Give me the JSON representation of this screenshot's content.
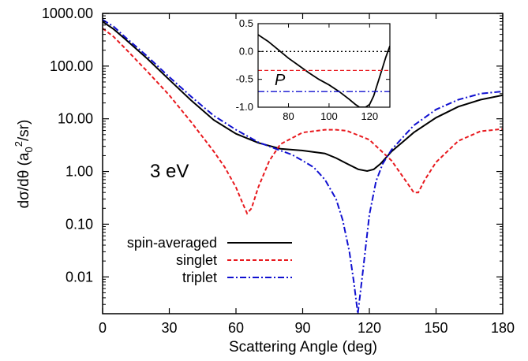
{
  "chart_data": [
    {
      "type": "line",
      "xlabel": "Scattering Angle (deg)",
      "ylabel": "dσ/dθ (a",
      "ylabel_sub": "0",
      "ylabel_sup": "2",
      "ylabel_tail": "/sr)",
      "xlim": [
        0,
        180
      ],
      "ylim": [
        0.002,
        1000
      ],
      "yscale": "log",
      "grid": false,
      "legend_position": "bottom-left",
      "xticks": [
        0,
        30,
        60,
        90,
        120,
        150,
        180
      ],
      "xtick_labels": [
        "0",
        "30",
        "60",
        "90",
        "120",
        "150",
        "180"
      ],
      "yticks": [
        0.01,
        0.1,
        1,
        10,
        100,
        1000
      ],
      "ytick_labels": [
        "0.01",
        "0.10",
        "1.00",
        "10.00",
        "100.00",
        "1000.00"
      ],
      "annotation": "3 eV",
      "series": [
        {
          "name": "spin-averaged",
          "color": "#000000",
          "style": "solid",
          "points": [
            [
              0,
              700
            ],
            [
              5,
              500
            ],
            [
              10,
              330
            ],
            [
              20,
              140
            ],
            [
              30,
              55
            ],
            [
              40,
              22
            ],
            [
              50,
              9.5
            ],
            [
              60,
              5.2
            ],
            [
              70,
              3.5
            ],
            [
              80,
              2.7
            ],
            [
              90,
              2.5
            ],
            [
              100,
              2.2
            ],
            [
              105,
              1.8
            ],
            [
              110,
              1.4
            ],
            [
              115,
              1.1
            ],
            [
              119,
              1.02
            ],
            [
              122,
              1.1
            ],
            [
              125,
              1.4
            ],
            [
              130,
              2.4
            ],
            [
              140,
              5.5
            ],
            [
              150,
              10.5
            ],
            [
              160,
              17
            ],
            [
              170,
              23
            ],
            [
              180,
              28
            ]
          ]
        },
        {
          "name": "singlet",
          "color": "#e8191e",
          "style": "dashed",
          "points": [
            [
              0,
              520
            ],
            [
              5,
              360
            ],
            [
              10,
              220
            ],
            [
              20,
              80
            ],
            [
              30,
              28
            ],
            [
              40,
              8.5
            ],
            [
              50,
              2.4
            ],
            [
              55,
              1.2
            ],
            [
              60,
              0.5
            ],
            [
              63,
              0.25
            ],
            [
              65,
              0.16
            ],
            [
              67,
              0.2
            ],
            [
              70,
              0.5
            ],
            [
              75,
              1.6
            ],
            [
              80,
              3.3
            ],
            [
              90,
              5.5
            ],
            [
              100,
              6.2
            ],
            [
              105,
              6.2
            ],
            [
              110,
              5.9
            ],
            [
              120,
              4.0
            ],
            [
              130,
              1.6
            ],
            [
              135,
              0.8
            ],
            [
              140,
              0.4
            ],
            [
              142,
              0.4
            ],
            [
              145,
              0.7
            ],
            [
              150,
              1.5
            ],
            [
              160,
              3.8
            ],
            [
              170,
              5.8
            ],
            [
              180,
              6.4
            ]
          ]
        },
        {
          "name": "triplet",
          "color": "#1010d0",
          "style": "dash-dot",
          "points": [
            [
              0,
              760
            ],
            [
              5,
              560
            ],
            [
              10,
              360
            ],
            [
              20,
              155
            ],
            [
              30,
              62
            ],
            [
              40,
              26
            ],
            [
              50,
              11.5
            ],
            [
              60,
              6.2
            ],
            [
              70,
              3.6
            ],
            [
              80,
              2.5
            ],
            [
              85,
              2.1
            ],
            [
              90,
              1.6
            ],
            [
              95,
              1.2
            ],
            [
              100,
              0.7
            ],
            [
              105,
              0.3
            ],
            [
              108,
              0.12
            ],
            [
              111,
              0.03
            ],
            [
              113,
              0.008
            ],
            [
              114.8,
              0.002
            ],
            [
              117,
              0.012
            ],
            [
              120,
              0.15
            ],
            [
              123,
              0.65
            ],
            [
              126,
              1.4
            ],
            [
              130,
              2.6
            ],
            [
              140,
              7.5
            ],
            [
              150,
              15
            ],
            [
              160,
              23
            ],
            [
              170,
              30
            ],
            [
              180,
              33
            ]
          ]
        }
      ]
    },
    {
      "type": "line",
      "xlim": [
        65,
        130
      ],
      "ylim": [
        -1.0,
        0.5
      ],
      "xticks": [
        80,
        100,
        120
      ],
      "xtick_labels": [
        "80",
        "100",
        "120"
      ],
      "yticks": [
        0.5,
        0.0,
        -0.5,
        -1.0
      ],
      "ytick_labels": [
        "0.5",
        "0.0",
        "-0.5",
        "-1.0"
      ],
      "annotation": "P",
      "series": [
        {
          "color": "#000000",
          "style": "solid",
          "points": [
            [
              65,
              0.3
            ],
            [
              70,
              0.18
            ],
            [
              75,
              0.03
            ],
            [
              80,
              -0.12
            ],
            [
              85,
              -0.25
            ],
            [
              90,
              -0.38
            ],
            [
              95,
              -0.5
            ],
            [
              100,
              -0.6
            ],
            [
              105,
              -0.72
            ],
            [
              110,
              -0.86
            ],
            [
              113,
              -0.95
            ],
            [
              115,
              -1.0
            ],
            [
              118,
              -1.0
            ],
            [
              120,
              -0.95
            ],
            [
              122,
              -0.8
            ],
            [
              125,
              -0.45
            ],
            [
              128,
              -0.1
            ],
            [
              130,
              0.1
            ]
          ]
        },
        {
          "color": "#000000",
          "style": "dotted",
          "points": [
            [
              65,
              0.0
            ],
            [
              130,
              0.0
            ]
          ]
        },
        {
          "color": "#e8191e",
          "style": "dashed",
          "points": [
            [
              65,
              -0.34
            ],
            [
              130,
              -0.34
            ]
          ]
        },
        {
          "color": "#1010d0",
          "style": "dash-dot",
          "points": [
            [
              65,
              -0.72
            ],
            [
              130,
              -0.72
            ]
          ]
        }
      ]
    }
  ]
}
